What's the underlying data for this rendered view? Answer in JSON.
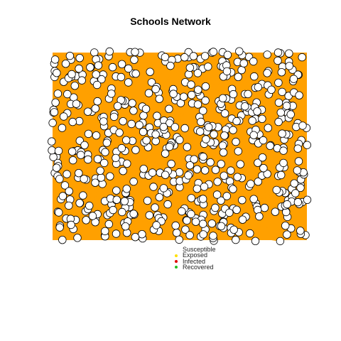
{
  "title": "Schools Network",
  "network": {
    "edge_color": "#FFA000",
    "node_fill": "#FFFFFF",
    "node_stroke": "#000000",
    "node_count": 600
  },
  "legend": [
    {
      "label": "Susceptible",
      "color": "#FFFFFF"
    },
    {
      "label": "Exposed",
      "color": "#FFE000"
    },
    {
      "label": "Infected",
      "color": "#E00000"
    },
    {
      "label": "Recovered",
      "color": "#22C022"
    }
  ]
}
